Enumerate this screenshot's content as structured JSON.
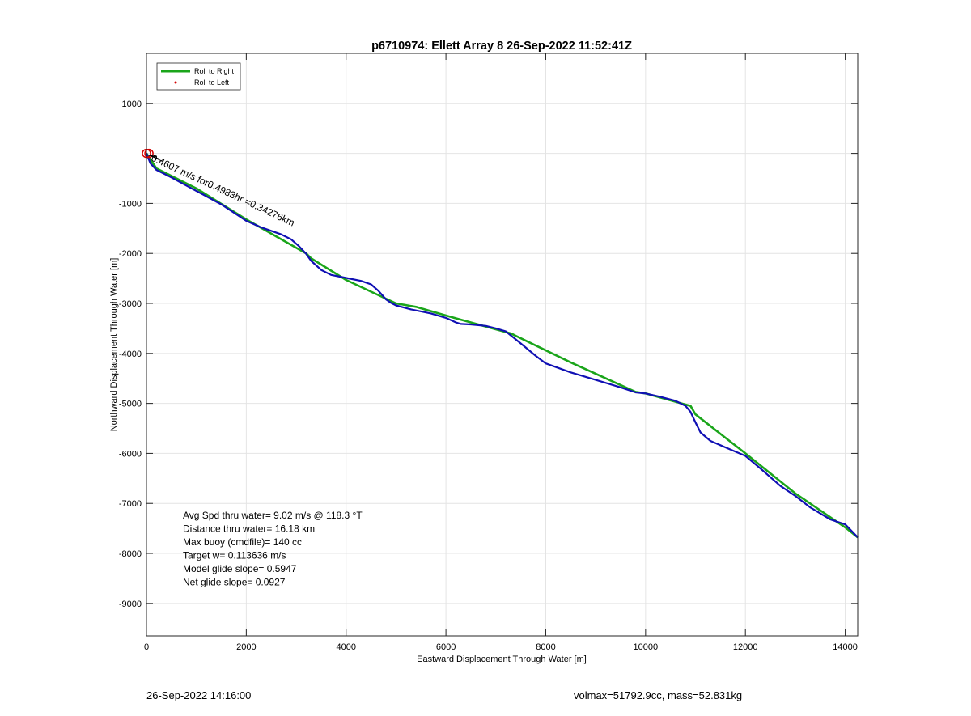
{
  "footer": {
    "left": "26-Sep-2022 14:16:00",
    "right": "volmax=51792.9cc, mass=52.831kg"
  },
  "colors": {
    "right": "#1aa51a",
    "left": "#d40000",
    "track": "#1010b4",
    "axis": "#000000",
    "grid": "#e4e4e4"
  },
  "chart_data": {
    "type": "line",
    "title": "p6710974: Ellett Array 8 26-Sep-2022 11:52:41Z",
    "xlabel": "Eastward Displacement Through Water [m]",
    "ylabel": "Northward Displacement Through Water [m]",
    "xlim": [
      0,
      14250
    ],
    "ylim": [
      -9650,
      2000
    ],
    "xticks": [
      0,
      2000,
      4000,
      6000,
      8000,
      10000,
      12000,
      14000
    ],
    "yticks": [
      -9000,
      -8000,
      -7000,
      -6000,
      -5000,
      -4000,
      -3000,
      -2000,
      -1000,
      1000
    ],
    "grid": true,
    "legend": {
      "position": "top-left",
      "entries": [
        "Roll to Right",
        "Roll to Left"
      ]
    },
    "series": [
      {
        "name": "Roll to Right",
        "style": "line",
        "color": "#1aa51a",
        "x": [
          0,
          200,
          1000,
          2000,
          3200,
          3300,
          4000,
          5000,
          5400,
          6100,
          7300,
          8500,
          9800,
          10000,
          10900,
          11000,
          12000,
          13000,
          14000,
          14250
        ],
        "y": [
          0,
          -300,
          -700,
          -1320,
          -2000,
          -2100,
          -2530,
          -3000,
          -3070,
          -3270,
          -3600,
          -4180,
          -4770,
          -4800,
          -5050,
          -5220,
          -6000,
          -6800,
          -7480,
          -7680
        ]
      },
      {
        "name": "Roll to Left",
        "style": "marker",
        "color": "#d40000",
        "x": [
          0,
          50
        ],
        "y": [
          0,
          0
        ]
      },
      {
        "name": "",
        "style": "line",
        "color": "#1010b4",
        "x": [
          0,
          80,
          200,
          500,
          1000,
          1500,
          2000,
          2300,
          2700,
          2900,
          3050,
          3200,
          3300,
          3500,
          3700,
          4000,
          4300,
          4500,
          4650,
          4800,
          4900,
          5000,
          5300,
          5700,
          6000,
          6200,
          6300,
          6500,
          6800,
          7000,
          7200,
          7500,
          7800,
          8000,
          8500,
          9000,
          9500,
          9800,
          10000,
          10300,
          10600,
          10800,
          10900,
          11000,
          11100,
          11300,
          11600,
          12000,
          12300,
          12700,
          13000,
          13300,
          13700,
          14000,
          14250
        ],
        "y": [
          0,
          -200,
          -330,
          -480,
          -750,
          -1020,
          -1350,
          -1480,
          -1620,
          -1720,
          -1850,
          -2010,
          -2150,
          -2330,
          -2430,
          -2490,
          -2550,
          -2620,
          -2750,
          -2920,
          -2990,
          -3040,
          -3120,
          -3200,
          -3290,
          -3380,
          -3410,
          -3420,
          -3450,
          -3500,
          -3560,
          -3800,
          -4050,
          -4200,
          -4380,
          -4530,
          -4680,
          -4780,
          -4800,
          -4870,
          -4950,
          -5050,
          -5170,
          -5380,
          -5580,
          -5750,
          -5880,
          -6050,
          -6300,
          -6650,
          -6850,
          -7080,
          -7320,
          -7420,
          -7680
        ]
      }
    ],
    "annotations": {
      "rotated": "0.4607 m/s for0.4983hr =0.34276km",
      "stats": [
        "Avg Spd thru water=  9.02 m/s @ 118.3 °T",
        "Distance thru water= 16.18 km",
        "Max buoy (cmdfile)= 140 cc",
        "Target w= 0.113636 m/s",
        "Model glide slope= 0.5947",
        "Net glide slope= 0.0927"
      ]
    }
  }
}
